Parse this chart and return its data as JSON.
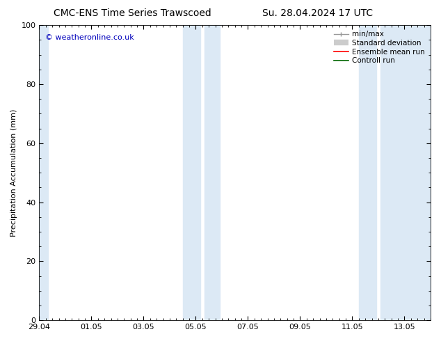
{
  "title_left": "CMC-ENS Time Series Trawscoed",
  "title_right": "Su. 28.04.2024 17 UTC",
  "ylabel": "Precipitation Accumulation (mm)",
  "watermark": "© weatheronline.co.uk",
  "ylim": [
    0,
    100
  ],
  "yticks": [
    0,
    20,
    40,
    60,
    80,
    100
  ],
  "xtick_labels": [
    "29.04",
    "01.05",
    "03.05",
    "05.05",
    "07.05",
    "09.05",
    "11.05",
    "13.05"
  ],
  "bg_color": "#ffffff",
  "plot_bg_color": "#ffffff",
  "band_color": "#dce9f5",
  "font_size_title": 10,
  "font_size_tick": 8,
  "font_size_ylabel": 8,
  "font_size_legend": 7.5,
  "font_size_watermark": 8,
  "watermark_color": "#0000bb",
  "tick_color": "#000000"
}
